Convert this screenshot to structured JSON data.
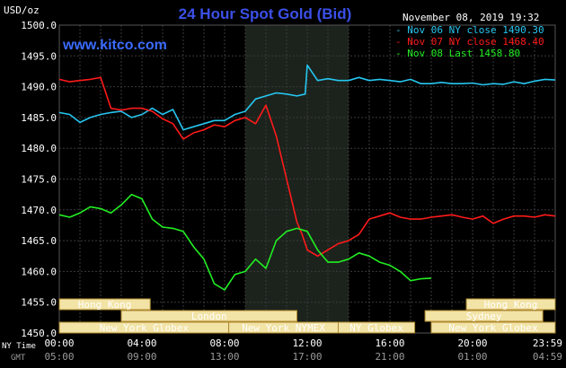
{
  "chart_data": {
    "type": "line",
    "title": "24 Hour Spot Gold (Bid)",
    "watermark": "www.kitco.com",
    "date_label": "November 08, 2019 19:32",
    "y_unit": "USD/oz",
    "ylim": [
      1450,
      1500
    ],
    "yticks": [
      "1500.0",
      "1495.0",
      "1490.0",
      "1485.0",
      "1480.0",
      "1475.0",
      "1470.0",
      "1465.0",
      "1460.0",
      "1455.0",
      "1450.0"
    ],
    "xlim": [
      0,
      24
    ],
    "x_row_label": "NY Time",
    "x_row_label_gmt": "GMT",
    "xticks": [
      "00:00",
      "04:00",
      "08:00",
      "12:00",
      "16:00",
      "20:00",
      "23:59"
    ],
    "xticks_gmt": [
      "05:00",
      "09:00",
      "13:00",
      "17:00",
      "21:00",
      "01:00",
      "04:59"
    ],
    "grid": true,
    "legend_position": "top-right",
    "shaded_session": [
      9,
      14
    ],
    "colors": {
      "background": "#000000",
      "grid": "#3a3a3a",
      "shade": "#1c231c",
      "market_bar": "#f2e3a6",
      "market_border": "#b08b30"
    },
    "series": [
      {
        "name": "Nov 06 NY close 1490.30",
        "color": "#26c6f0",
        "x": [
          0,
          0.5,
          1,
          1.5,
          2,
          2.5,
          3,
          3.5,
          4,
          4.5,
          5,
          5.5,
          6,
          6.5,
          7,
          7.5,
          8,
          8.5,
          9,
          9.5,
          10,
          10.5,
          11,
          11.5,
          11.9,
          12,
          12.5,
          13,
          13.5,
          14,
          14.5,
          15,
          15.5,
          16,
          16.5,
          17,
          17.5,
          18,
          18.5,
          19,
          19.5,
          20,
          20.5,
          21,
          21.5,
          22,
          22.5,
          23,
          23.5,
          24
        ],
        "values": [
          1485.8,
          1485.5,
          1484.2,
          1485.0,
          1485.5,
          1485.8,
          1486.0,
          1485.0,
          1485.5,
          1486.5,
          1485.5,
          1486.3,
          1483.0,
          1483.5,
          1484.0,
          1484.5,
          1484.5,
          1485.5,
          1486.0,
          1488.0,
          1488.5,
          1489.0,
          1488.8,
          1488.5,
          1488.8,
          1493.5,
          1491.0,
          1491.3,
          1491.0,
          1491.0,
          1491.5,
          1491.0,
          1491.2,
          1491.0,
          1490.8,
          1491.2,
          1490.5,
          1490.5,
          1490.7,
          1490.5,
          1490.5,
          1490.6,
          1490.3,
          1490.5,
          1490.4,
          1490.8,
          1490.5,
          1490.9,
          1491.2,
          1491.1
        ]
      },
      {
        "name": "Nov 07 NY close 1468.40",
        "color": "#ff1a1a",
        "x": [
          0,
          0.5,
          1,
          1.5,
          2,
          2.5,
          3,
          3.5,
          4,
          4.5,
          5,
          5.5,
          6,
          6.5,
          7,
          7.5,
          8,
          8.5,
          9,
          9.5,
          10,
          10.5,
          11,
          11.25,
          11.5,
          11.75,
          12,
          12.5,
          13,
          13.5,
          14,
          14.5,
          15,
          15.5,
          16,
          16.5,
          17,
          17.5,
          18,
          18.5,
          19,
          19.5,
          20,
          20.5,
          21,
          21.5,
          22,
          22.5,
          23,
          23.5,
          24
        ],
        "values": [
          1491.2,
          1490.8,
          1491.0,
          1491.2,
          1491.5,
          1486.5,
          1486.2,
          1486.5,
          1486.5,
          1486.0,
          1484.8,
          1484.0,
          1481.5,
          1482.5,
          1483.0,
          1483.8,
          1483.5,
          1484.5,
          1485.0,
          1484.0,
          1487.0,
          1482.0,
          1475.0,
          1471.5,
          1468.0,
          1466.0,
          1463.5,
          1462.5,
          1463.5,
          1464.5,
          1465.0,
          1466.0,
          1468.5,
          1469.0,
          1469.5,
          1468.8,
          1468.5,
          1468.5,
          1468.8,
          1469.0,
          1469.2,
          1468.8,
          1468.5,
          1469.0,
          1467.8,
          1468.5,
          1469.0,
          1469.0,
          1468.8,
          1469.2,
          1469.0
        ]
      },
      {
        "name": "Nov 08 Last 1458.80",
        "color": "#22ee22",
        "x": [
          0,
          0.5,
          1,
          1.5,
          2,
          2.5,
          3,
          3.5,
          4,
          4.5,
          5,
          5.5,
          6,
          6.5,
          7,
          7.5,
          8,
          8.5,
          9,
          9.5,
          10,
          10.5,
          11,
          11.5,
          12,
          12.5,
          13,
          13.5,
          14,
          14.5,
          15,
          15.5,
          16,
          16.5,
          17,
          17.5,
          18
        ],
        "values": [
          1469.2,
          1468.8,
          1469.5,
          1470.5,
          1470.2,
          1469.5,
          1470.8,
          1472.5,
          1471.8,
          1468.5,
          1467.2,
          1467.0,
          1466.5,
          1464.0,
          1462.0,
          1458.0,
          1457.0,
          1459.5,
          1460.0,
          1462.0,
          1460.5,
          1465.0,
          1466.5,
          1467.0,
          1466.5,
          1463.5,
          1461.5,
          1461.5,
          1462.0,
          1463.0,
          1462.5,
          1461.5,
          1461.0,
          1460.0,
          1458.5,
          1458.8,
          1458.9
        ]
      }
    ],
    "market_rows": [
      {
        "segments": [
          {
            "label": "Hong Kong",
            "start": 0,
            "end": 4.4
          },
          {
            "label": "Hong Kong",
            "start": 19.7,
            "end": 24
          }
        ]
      },
      {
        "segments": [
          {
            "label": "London",
            "start": 3,
            "end": 11.5
          },
          {
            "label": "Sydney",
            "start": 17.7,
            "end": 23.4
          }
        ]
      },
      {
        "segments": [
          {
            "label": "New York Globex",
            "start": 0,
            "end": 8.2
          },
          {
            "label": "New York NYMEX",
            "start": 8.2,
            "end": 13.5
          },
          {
            "label": "NY Globex",
            "start": 13.5,
            "end": 17.2
          },
          {
            "label": "New York Globex",
            "start": 18,
            "end": 24
          }
        ]
      }
    ]
  }
}
